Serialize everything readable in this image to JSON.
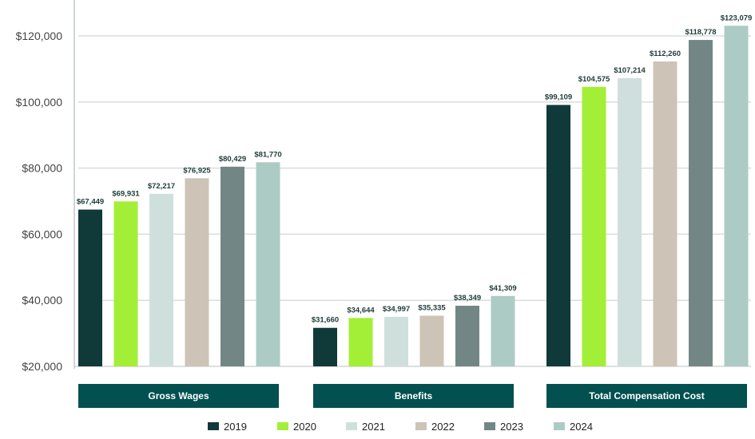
{
  "chart_data": {
    "type": "bar",
    "categories": [
      "Gross Wages",
      "Benefits",
      "Total Compensation Cost"
    ],
    "series": [
      {
        "name": "2019",
        "color": "#10393a",
        "values": [
          67449,
          31660,
          99109
        ],
        "labels": [
          "$67,449",
          "$31,660",
          "$99,109"
        ]
      },
      {
        "name": "2020",
        "color": "#a3ef38",
        "values": [
          69931,
          34644,
          104575
        ],
        "labels": [
          "$69,931",
          "$34,644",
          "$104,575"
        ]
      },
      {
        "name": "2021",
        "color": "#cfdfdc",
        "values": [
          72217,
          34997,
          107214
        ],
        "labels": [
          "$72,217",
          "$34,997",
          "$107,214"
        ]
      },
      {
        "name": "2022",
        "color": "#cdc3b6",
        "values": [
          76925,
          35335,
          112260
        ],
        "labels": [
          "$76,925",
          "$35,335",
          "$112,260"
        ]
      },
      {
        "name": "2023",
        "color": "#728785",
        "values": [
          80429,
          38349,
          118778
        ],
        "labels": [
          "$80,429",
          "$38,349",
          "$118,778"
        ]
      },
      {
        "name": "2024",
        "color": "#adcbc5",
        "values": [
          81770,
          41309,
          123079
        ],
        "labels": [
          "$81,770",
          "$41,309",
          "$123,079"
        ]
      }
    ],
    "yticks": [
      20000,
      40000,
      60000,
      80000,
      100000,
      120000
    ],
    "ytick_labels": [
      "$20,000",
      "$40,000",
      "$60,000",
      "$80,000",
      "$100,000",
      "$120,000"
    ],
    "ylim": [
      20000,
      120000
    ],
    "grid": true,
    "legend": "bottom",
    "category_box_color": "#02504f"
  }
}
